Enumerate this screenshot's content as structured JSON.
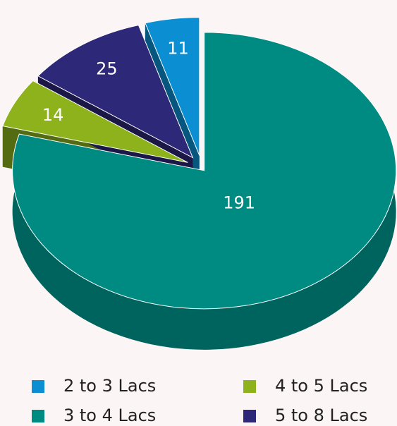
{
  "chart_data": {
    "type": "pie",
    "categories": [
      "2 to 3 Lacs",
      "3 to 4 Lacs",
      "4 to 5 Lacs",
      "5 to 8 Lacs"
    ],
    "values": [
      11,
      191,
      14,
      25
    ],
    "colors": [
      "#0b8fd2",
      "#008b82",
      "#8db21c",
      "#2d2878"
    ],
    "legend": "bottom"
  }
}
